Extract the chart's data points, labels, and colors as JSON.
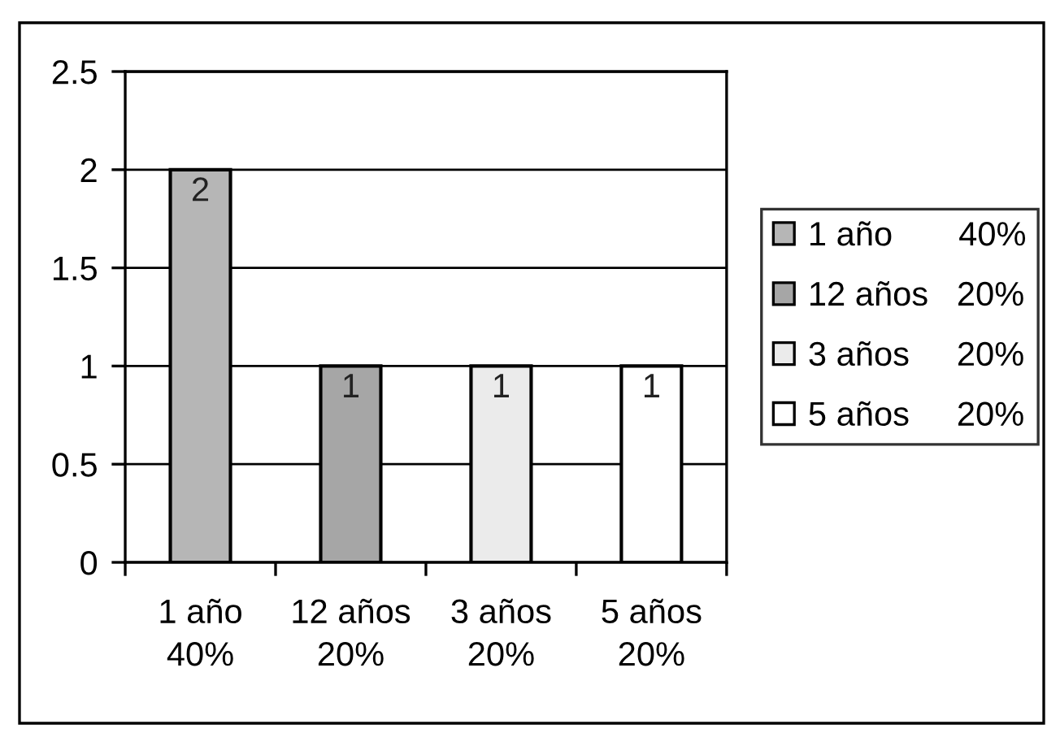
{
  "chart_data": {
    "type": "bar",
    "categories": [
      "1 año\n40%",
      "12 años\n20%",
      "3 años\n20%",
      "5 años\n20%"
    ],
    "stacked": true,
    "series": [
      {
        "name": "1 año 40%",
        "color": "#b6b6b6",
        "values": [
          2,
          null,
          null,
          null
        ]
      },
      {
        "name": "12 años 20%",
        "color": "#a6a6a6",
        "values": [
          null,
          1,
          null,
          null
        ]
      },
      {
        "name": "3 años 20%",
        "color": "#ebebeb",
        "values": [
          null,
          null,
          1,
          null
        ]
      },
      {
        "name": "5 años 20%",
        "color": "#ffffff",
        "values": [
          null,
          null,
          null,
          1
        ]
      }
    ],
    "ylim": [
      0,
      2.5
    ],
    "yticks": [
      0,
      0.5,
      1,
      1.5,
      2,
      2.5
    ],
    "grid": "y",
    "legend": "right",
    "data_labels": true
  }
}
